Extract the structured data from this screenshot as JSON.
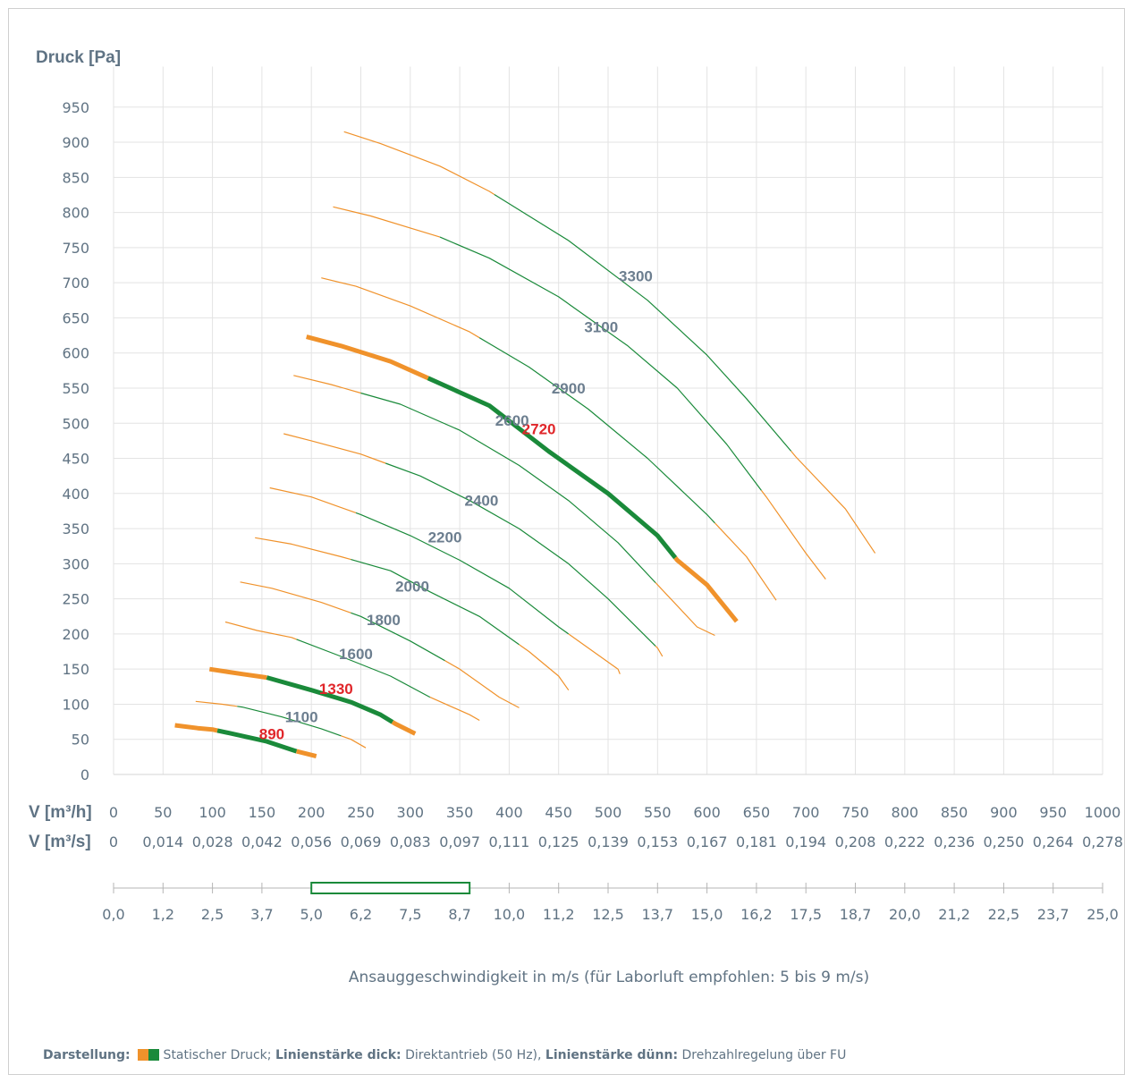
{
  "chart_data": {
    "type": "line",
    "ylabel": "Druck [Pa]",
    "ylim": [
      0,
      1000
    ],
    "yticks": [
      950,
      900,
      850,
      800,
      750,
      700,
      650,
      600,
      550,
      500,
      450,
      400,
      350,
      300,
      250,
      200,
      150,
      100,
      50,
      0
    ],
    "xlim": [
      0,
      1000
    ],
    "x_rows": [
      {
        "label": "V [m³/h]",
        "ticks": [
          "0",
          "50",
          "100",
          "150",
          "200",
          "250",
          "300",
          "350",
          "400",
          "450",
          "500",
          "550",
          "600",
          "650",
          "700",
          "750",
          "800",
          "850",
          "900",
          "950",
          "1000"
        ]
      },
      {
        "label": "V [m³/s]",
        "ticks": [
          "0",
          "0,014",
          "0,028",
          "0,042",
          "0,056",
          "0,069",
          "0,083",
          "0,097",
          "0,111",
          "0,125",
          "0,139",
          "0,153",
          "0,167",
          "0,181",
          "0,194",
          "0,208",
          "0,222",
          "0,236",
          "0,250",
          "0,264",
          "0,278"
        ]
      }
    ],
    "velocity_axis": {
      "ticks": [
        "0,0",
        "1,2",
        "2,5",
        "3,7",
        "5,0",
        "6,2",
        "7,5",
        "8,7",
        "10,0",
        "11,2",
        "12,5",
        "13,7",
        "15,0",
        "16,2",
        "17,5",
        "18,7",
        "20,0",
        "21,2",
        "22,5",
        "23,7",
        "25,0"
      ],
      "recommended_range": [
        5,
        9
      ],
      "caption": "Ansauggeschwindigkeit in m/s (für Laborluft empfohlen: 5 bis 9 m/s)"
    },
    "series": [
      {
        "name": "3300",
        "thick": false,
        "highlight": false,
        "label_at": [
          528,
          710
        ],
        "points": [
          [
            233,
            915
          ],
          [
            270,
            898
          ],
          [
            330,
            866
          ],
          [
            380,
            830
          ],
          [
            460,
            760
          ],
          [
            540,
            675
          ],
          [
            600,
            597
          ],
          [
            640,
            535
          ],
          [
            690,
            452
          ],
          [
            740,
            378
          ],
          [
            770,
            315
          ]
        ],
        "green_range": [
          385,
          685
        ]
      },
      {
        "name": "3100",
        "thick": false,
        "highlight": false,
        "label_at": [
          493,
          637
        ],
        "points": [
          [
            222,
            808
          ],
          [
            260,
            795
          ],
          [
            330,
            765
          ],
          [
            380,
            735
          ],
          [
            450,
            680
          ],
          [
            520,
            610
          ],
          [
            570,
            550
          ],
          [
            620,
            470
          ],
          [
            660,
            395
          ],
          [
            700,
            315
          ],
          [
            720,
            278
          ]
        ],
        "green_range": [
          330,
          655
        ]
      },
      {
        "name": "2900",
        "thick": false,
        "highlight": false,
        "label_at": [
          460,
          550
        ],
        "points": [
          [
            210,
            707
          ],
          [
            245,
            695
          ],
          [
            300,
            667
          ],
          [
            360,
            630
          ],
          [
            420,
            580
          ],
          [
            480,
            520
          ],
          [
            540,
            450
          ],
          [
            600,
            370
          ],
          [
            640,
            310
          ],
          [
            670,
            248
          ]
        ],
        "green_range": [
          370,
          608
        ]
      },
      {
        "name": "2720",
        "thick": true,
        "highlight": true,
        "label_at": [
          430,
          492
        ],
        "points": [
          [
            195,
            623
          ],
          [
            230,
            610
          ],
          [
            280,
            588
          ],
          [
            320,
            563
          ],
          [
            380,
            525
          ],
          [
            440,
            460
          ],
          [
            500,
            400
          ],
          [
            550,
            340
          ],
          [
            570,
            305
          ],
          [
            600,
            270
          ],
          [
            630,
            218
          ]
        ],
        "green_range": [
          318,
          568
        ]
      },
      {
        "name": "2600",
        "thick": false,
        "highlight": false,
        "label_at": [
          403,
          504
        ],
        "points": [
          [
            182,
            568
          ],
          [
            220,
            555
          ],
          [
            290,
            527
          ],
          [
            350,
            490
          ],
          [
            410,
            440
          ],
          [
            460,
            390
          ],
          [
            510,
            330
          ],
          [
            550,
            270
          ],
          [
            590,
            210
          ],
          [
            608,
            198
          ]
        ],
        "green_range": [
          250,
          548
        ]
      },
      {
        "name": "2400",
        "thick": false,
        "highlight": false,
        "label_at": [
          372,
          390
        ],
        "points": [
          [
            172,
            485
          ],
          [
            200,
            475
          ],
          [
            250,
            456
          ],
          [
            310,
            425
          ],
          [
            360,
            390
          ],
          [
            410,
            350
          ],
          [
            460,
            300
          ],
          [
            500,
            250
          ],
          [
            550,
            180
          ],
          [
            555,
            168
          ]
        ],
        "green_range": [
          275,
          548
        ]
      },
      {
        "name": "2200",
        "thick": false,
        "highlight": false,
        "label_at": [
          335,
          338
        ],
        "points": [
          [
            158,
            408
          ],
          [
            200,
            395
          ],
          [
            250,
            370
          ],
          [
            300,
            340
          ],
          [
            350,
            305
          ],
          [
            400,
            265
          ],
          [
            450,
            210
          ],
          [
            510,
            150
          ],
          [
            512,
            143
          ]
        ],
        "green_range": [
          245,
          460
        ]
      },
      {
        "name": "2000",
        "thick": false,
        "highlight": false,
        "label_at": [
          302,
          268
        ],
        "points": [
          [
            143,
            337
          ],
          [
            180,
            328
          ],
          [
            230,
            310
          ],
          [
            280,
            290
          ],
          [
            320,
            260
          ],
          [
            370,
            225
          ],
          [
            420,
            175
          ],
          [
            450,
            140
          ],
          [
            460,
            120
          ]
        ],
        "green_range": [
          240,
          410
        ]
      },
      {
        "name": "1800",
        "thick": false,
        "highlight": false,
        "label_at": [
          273,
          220
        ],
        "points": [
          [
            128,
            274
          ],
          [
            160,
            265
          ],
          [
            210,
            245
          ],
          [
            250,
            225
          ],
          [
            300,
            190
          ],
          [
            350,
            150
          ],
          [
            390,
            110
          ],
          [
            410,
            95
          ]
        ],
        "green_range": [
          240,
          335
        ]
      },
      {
        "name": "1600",
        "thick": false,
        "highlight": false,
        "label_at": [
          245,
          172
        ],
        "points": [
          [
            113,
            217
          ],
          [
            145,
            205
          ],
          [
            180,
            195
          ],
          [
            230,
            168
          ],
          [
            280,
            140
          ],
          [
            320,
            110
          ],
          [
            360,
            85
          ],
          [
            370,
            77
          ]
        ],
        "green_range": [
          185,
          320
        ]
      },
      {
        "name": "1330",
        "thick": true,
        "highlight": true,
        "label_at": [
          225,
          122
        ],
        "points": [
          [
            97,
            150
          ],
          [
            130,
            143
          ],
          [
            155,
            138
          ],
          [
            200,
            120
          ],
          [
            240,
            103
          ],
          [
            270,
            85
          ],
          [
            285,
            72
          ],
          [
            305,
            58
          ]
        ],
        "green_range": [
          155,
          282
        ]
      },
      {
        "name": "1100",
        "thick": false,
        "highlight": false,
        "label_at": [
          190,
          82
        ],
        "points": [
          [
            83,
            104
          ],
          [
            110,
            100
          ],
          [
            130,
            96
          ],
          [
            170,
            82
          ],
          [
            210,
            65
          ],
          [
            240,
            50
          ],
          [
            255,
            38
          ]
        ],
        "green_range": [
          125,
          230
        ]
      },
      {
        "name": "890",
        "thick": true,
        "highlight": true,
        "label_at": [
          160,
          58
        ],
        "points": [
          [
            62,
            70
          ],
          [
            85,
            66
          ],
          [
            100,
            64
          ],
          [
            120,
            58
          ],
          [
            155,
            47
          ],
          [
            185,
            33
          ],
          [
            205,
            26
          ]
        ],
        "green_range": [
          105,
          185
        ]
      }
    ]
  },
  "legend": {
    "prefix": "Darstellung:",
    "text1": " Statischer Druck; ",
    "bold2": "Linienstärke dick:",
    "text2": " Direktantrieb (50 Hz), ",
    "bold3": "Linienstärke dünn:",
    "text3": " Drehzahlregelung über FU",
    "colors": {
      "orange": "#f0922b",
      "green": "#1a8a3a"
    }
  }
}
